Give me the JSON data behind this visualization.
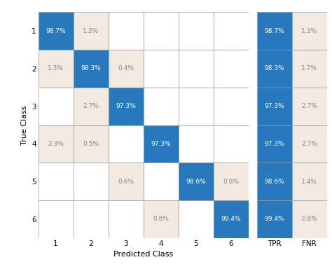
{
  "confusion_matrix": [
    [
      98.7,
      1.3,
      0.0,
      0.0,
      0.0,
      0.0
    ],
    [
      1.3,
      98.3,
      0.4,
      0.0,
      0.0,
      0.0
    ],
    [
      0.0,
      2.7,
      97.3,
      0.0,
      0.0,
      0.0
    ],
    [
      2.3,
      0.5,
      0.0,
      97.3,
      0.0,
      0.0
    ],
    [
      0.0,
      0.0,
      0.6,
      0.0,
      98.6,
      0.8
    ],
    [
      0.0,
      0.0,
      0.0,
      0.6,
      0.0,
      99.4
    ]
  ],
  "tpr": [
    98.7,
    98.3,
    97.3,
    97.3,
    98.6,
    99.4
  ],
  "fnr": [
    1.3,
    1.7,
    2.7,
    2.7,
    1.4,
    0.6
  ],
  "blue_color": "#2878BE",
  "beige_color": "#F2EAE0",
  "white_color": "#FFFFFF",
  "text_blue": "#FFFFFF",
  "text_dark": "#888888",
  "grid_color": "#999999",
  "bg_color": "#FFFFFF",
  "xlabel": "Predicted Class",
  "ylabel": "True Class",
  "tpr_label": "TPR",
  "fnr_label": "FNR",
  "classes": [
    1,
    2,
    3,
    4,
    5,
    6
  ],
  "show_threshold": 0.3
}
